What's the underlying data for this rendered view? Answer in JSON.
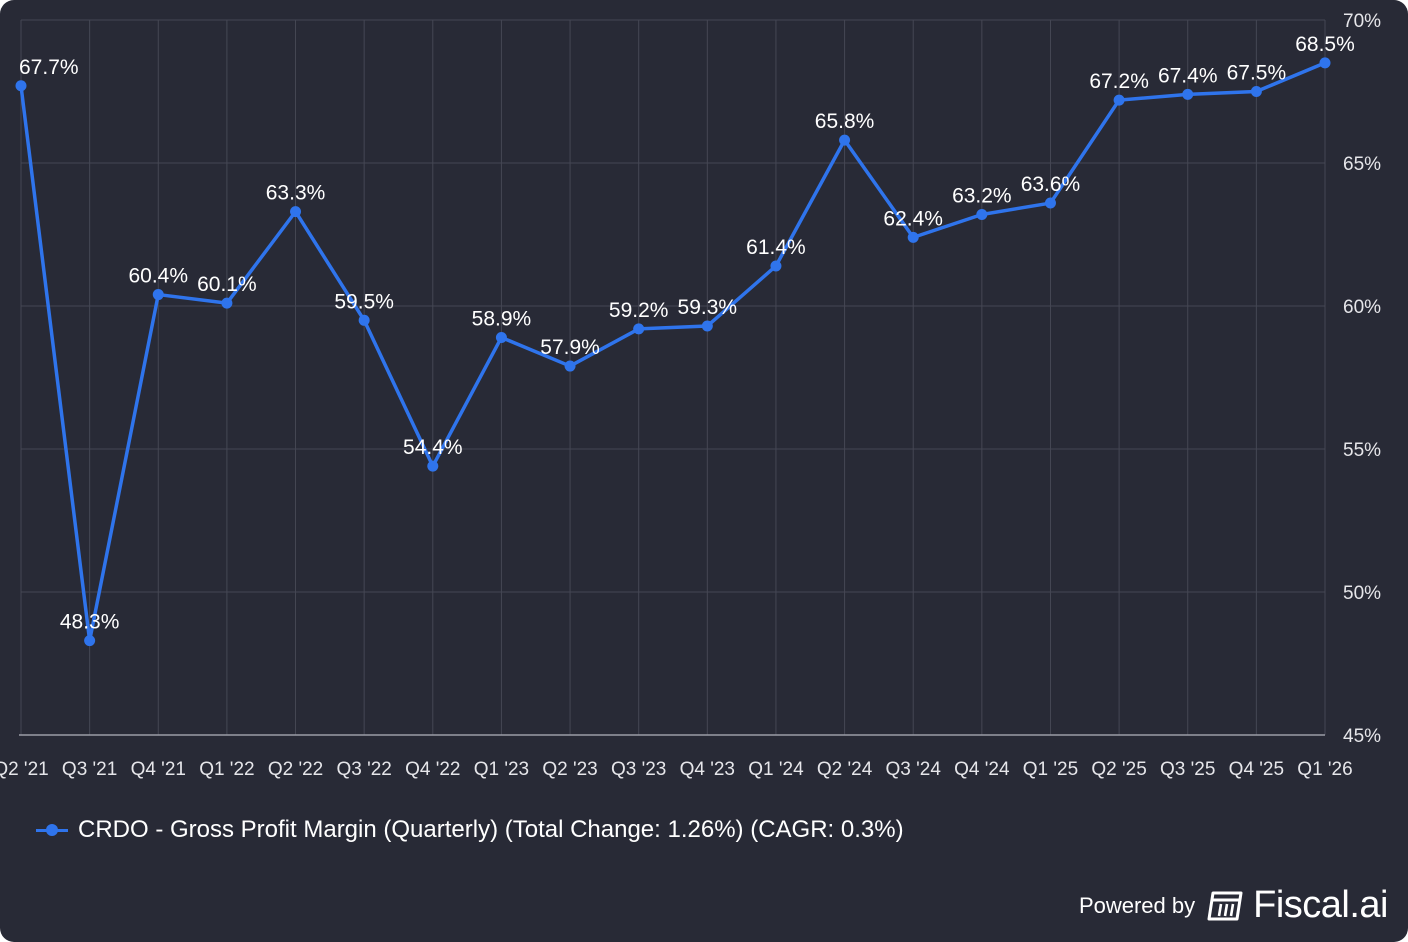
{
  "chart_data": {
    "type": "line",
    "categories": [
      "Q2 '21",
      "Q3 '21",
      "Q4 '21",
      "Q1 '22",
      "Q2 '22",
      "Q3 '22",
      "Q4 '22",
      "Q1 '23",
      "Q2 '23",
      "Q3 '23",
      "Q4 '23",
      "Q1 '24",
      "Q2 '24",
      "Q3 '24",
      "Q4 '24",
      "Q1 '25",
      "Q2 '25",
      "Q3 '25",
      "Q4 '25",
      "Q1 '26"
    ],
    "series": [
      {
        "name": "CRDO - Gross Profit Margin (Quarterly) (Total Change: 1.26%) (CAGR: 0.3%)",
        "values": [
          67.7,
          48.3,
          60.4,
          60.1,
          63.3,
          59.5,
          54.4,
          58.9,
          57.9,
          59.2,
          59.3,
          61.4,
          65.8,
          62.4,
          63.2,
          63.6,
          67.2,
          67.4,
          67.5,
          68.5
        ],
        "labels": [
          "67.7%",
          "48.3%",
          "60.4%",
          "60.1%",
          "63.3%",
          "59.5%",
          "54.4%",
          "58.9%",
          "57.9%",
          "59.2%",
          "59.3%",
          "61.4%",
          "65.8%",
          "62.4%",
          "63.2%",
          "63.6%",
          "67.2%",
          "67.4%",
          "67.5%",
          "68.5%"
        ]
      }
    ],
    "ylim": [
      45,
      70
    ],
    "yticks": [
      45,
      50,
      55,
      60,
      65,
      70
    ],
    "ytick_labels": [
      "45%",
      "50%",
      "55%",
      "60%",
      "65%",
      "70%"
    ],
    "title": "",
    "xlabel": "",
    "ylabel": "",
    "grid": true,
    "legend_position": "bottom-left",
    "colors": {
      "line": "#2f74ec",
      "background": "#282a36",
      "grid": "#454754",
      "text": "#ffffff",
      "axis_text": "#e6e6ea"
    }
  },
  "legend": {
    "label": "CRDO - Gross Profit Margin (Quarterly) (Total Change: 1.26%) (CAGR: 0.3%)"
  },
  "branding": {
    "powered_by": "Powered by",
    "name": "Fiscal.ai"
  }
}
